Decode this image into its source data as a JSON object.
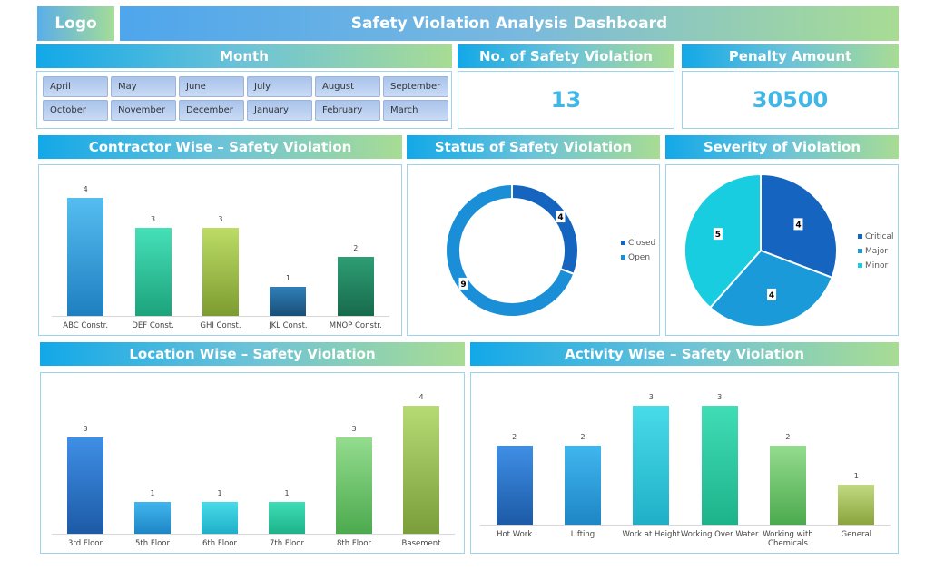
{
  "header": {
    "logo": "Logo",
    "title": "Safety Violation Analysis Dashboard"
  },
  "month": {
    "title": "Month",
    "items": [
      "April",
      "May",
      "June",
      "July",
      "August",
      "September",
      "October",
      "November",
      "December",
      "January",
      "February",
      "March"
    ]
  },
  "kpis": {
    "violations_title": "No. of Safety Violation",
    "violations_value": "13",
    "penalty_title": "Penalty Amount",
    "penalty_value": "30500"
  },
  "chart_data": [
    {
      "id": "contractor",
      "type": "bar",
      "title": "Contractor Wise – Safety Violation",
      "categories": [
        "ABC Constr.",
        "DEF Const.",
        "GHI Const.",
        "JKL Const.",
        "MNOP Constr."
      ],
      "values": [
        4,
        3,
        3,
        1,
        2
      ],
      "colors": [
        [
          "#55bdf0",
          "#1f7fc0"
        ],
        [
          "#45e0b8",
          "#1ca37c"
        ],
        [
          "#bcdc66",
          "#7d9c30"
        ],
        [
          "#2f80b8",
          "#1a4e78"
        ],
        [
          "#2e9e74",
          "#176a4c"
        ]
      ],
      "ymax": 4
    },
    {
      "id": "status",
      "type": "pie",
      "donut": true,
      "title": "Status of Safety Violation",
      "categories": [
        "Closed",
        "Open"
      ],
      "values": [
        4,
        9
      ],
      "colors": [
        "#1565c0",
        "#1a8fd8"
      ]
    },
    {
      "id": "severity",
      "type": "pie",
      "title": "Severity of Violation",
      "categories": [
        "Critical",
        "Major",
        "Minor"
      ],
      "values": [
        4,
        4,
        5
      ],
      "colors": [
        "#1565c0",
        "#1a9ad8",
        "#18cde0"
      ]
    },
    {
      "id": "location",
      "type": "bar",
      "title": "Location Wise – Safety Violation",
      "categories": [
        "3rd Floor",
        "5th Floor",
        "6th Floor",
        "7th Floor",
        "8th Floor",
        "Basement"
      ],
      "values": [
        3,
        1,
        1,
        1,
        3,
        4
      ],
      "colors": [
        [
          "#3f8fe6",
          "#1d5aa6"
        ],
        [
          "#40b6ee",
          "#1e86c6"
        ],
        [
          "#48dbe8",
          "#1fb0c8"
        ],
        [
          "#40ddb6",
          "#1db38a"
        ],
        [
          "#94dc8e",
          "#4caa4e"
        ],
        [
          "#b6da74",
          "#7a9e3a"
        ]
      ],
      "ymax": 4
    },
    {
      "id": "activity",
      "type": "bar",
      "title": "Activity Wise – Safety Violation",
      "categories": [
        "Hot Work",
        "Lifting",
        "Work at Height",
        "Working Over Water",
        "Working with Chemicals",
        "General"
      ],
      "values": [
        2,
        2,
        3,
        3,
        2,
        1
      ],
      "colors": [
        [
          "#3f8fe6",
          "#1d5aa6"
        ],
        [
          "#40b6ee",
          "#1e86c6"
        ],
        [
          "#48dbe8",
          "#1fb0c8"
        ],
        [
          "#40ddb6",
          "#1db38a"
        ],
        [
          "#94dc8e",
          "#4caa4e"
        ],
        [
          "#c2da80",
          "#8aa43e"
        ]
      ],
      "ymax": 3
    }
  ]
}
